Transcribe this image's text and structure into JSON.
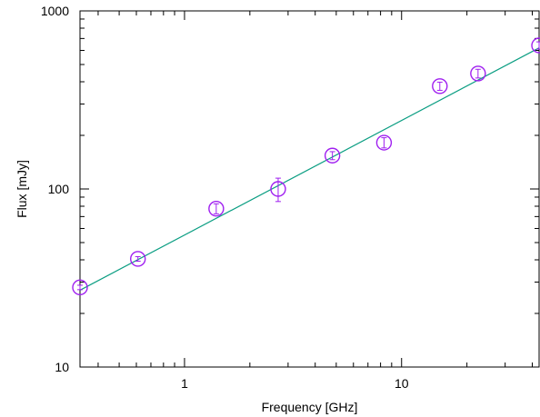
{
  "chart_data": {
    "type": "scatter",
    "title": "",
    "xlabel": "Frequency [GHz]",
    "ylabel": "Flux [mJy]",
    "x_scale": "log",
    "y_scale": "log",
    "xlim": [
      0.33,
      43
    ],
    "ylim": [
      10,
      1000
    ],
    "x_ticks": [
      {
        "value": 1,
        "label": "1"
      },
      {
        "value": 10,
        "label": "10"
      }
    ],
    "y_ticks": [
      {
        "value": 10,
        "label": "10"
      },
      {
        "value": 100,
        "label": "100"
      },
      {
        "value": 1000,
        "label": "1000"
      }
    ],
    "grid": false,
    "legend": "none",
    "colors": {
      "points": "#a020f0",
      "fit_line": "#0c9e83",
      "axes": "#000000"
    },
    "series": [
      {
        "type": "scatter-errorbar",
        "x": [
          0.33,
          0.61,
          1.4,
          2.7,
          4.8,
          8.3,
          15,
          22.5,
          43
        ],
        "y": [
          28,
          40.5,
          77.5,
          100,
          154,
          182,
          378,
          445,
          640
        ],
        "yerr": [
          0.8,
          1.2,
          5,
          15,
          8,
          12,
          20,
          25,
          30
        ]
      },
      {
        "type": "line",
        "x": [
          0.33,
          43
        ],
        "y": [
          27,
          620
        ]
      }
    ]
  }
}
